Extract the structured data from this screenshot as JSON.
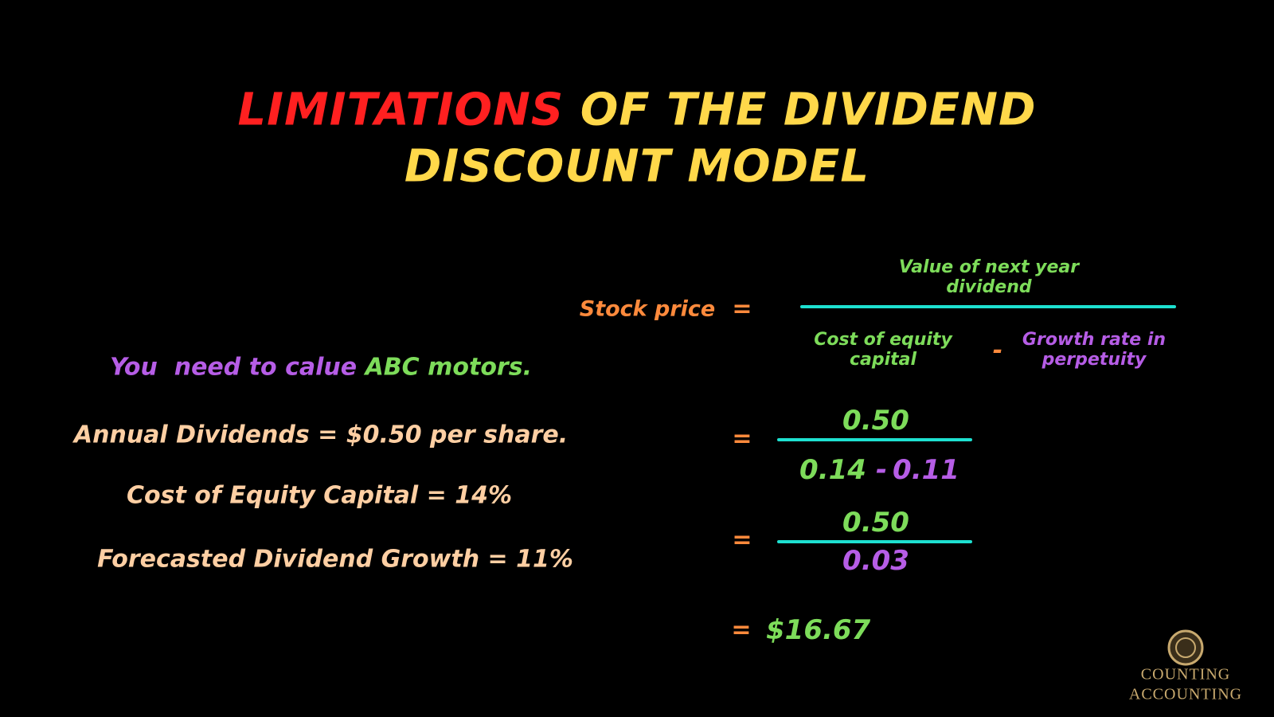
{
  "title": {
    "highlight": "LIMITATIONS",
    "line1_rest": "OF THE DIVIDEND",
    "line2": "DISCOUNT MODEL"
  },
  "example": {
    "intro_start": "You  need to calue",
    "intro_end": "ABC motors.",
    "lines": [
      "Annual Dividends = $0.50 per share.",
      "Cost of Equity Capital = 14%",
      "Forecasted Dividend Growth = 11%"
    ]
  },
  "formula": {
    "label": "Stock price",
    "equals": "=",
    "numerator": "Value of next year dividend",
    "denominator_left": "Cost of equity capital",
    "minus": "-",
    "denominator_right": "Growth rate in perpetuity"
  },
  "step1": {
    "equals": "=",
    "numerator": "0.50",
    "cost": "0.14",
    "minus": "-",
    "growth": "0.11"
  },
  "step2": {
    "equals": "=",
    "numerator": "0.50",
    "denominator": "0.03"
  },
  "result": {
    "equals": "=",
    "value": "$16.67"
  },
  "logo": {
    "line1": "COUNTING",
    "line2": "ACCOUNTING"
  }
}
